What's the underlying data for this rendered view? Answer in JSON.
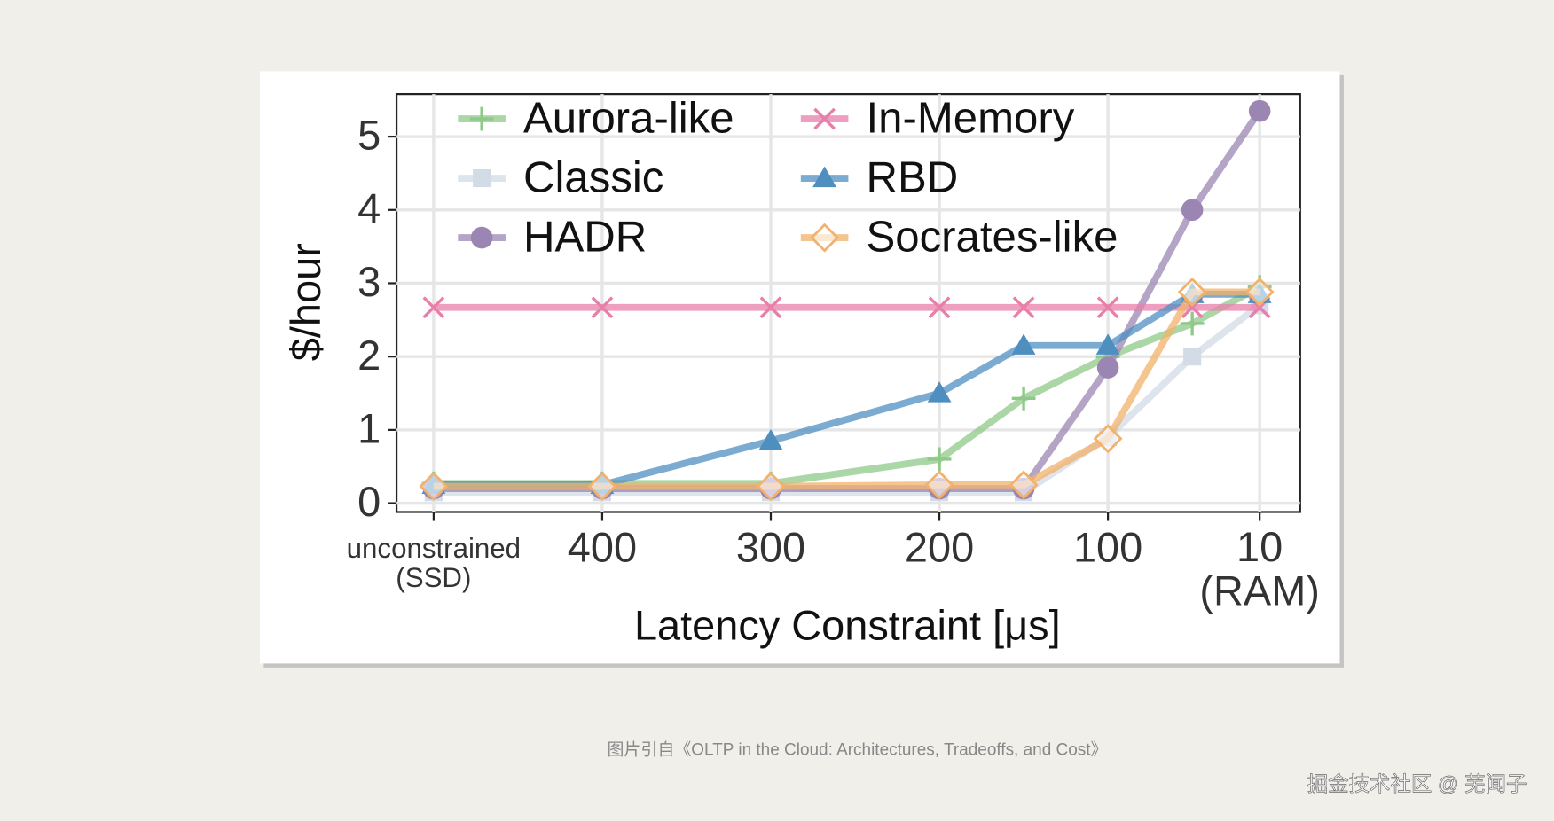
{
  "chart_data": {
    "type": "line",
    "xlabel": "Latency Constraint [μs]",
    "ylabel": "$/hour",
    "x": [
      500,
      400,
      300,
      200,
      150,
      100,
      50,
      10
    ],
    "xlim": [
      522,
      -14
    ],
    "ylim": [
      -0.12,
      5.58
    ],
    "xticks": [
      {
        "value": 500,
        "label": "unconstrained\n(SSD)"
      },
      400,
      300,
      200,
      100,
      {
        "value": 10,
        "label": "10\n(RAM)"
      }
    ],
    "yticks": [
      0,
      1,
      2,
      3,
      4,
      5
    ],
    "grid": true,
    "legend": "upper left",
    "series": [
      {
        "name": "Aurora-like",
        "color": "#8fc98a",
        "marker": "plus",
        "values": [
          0.27,
          0.27,
          0.27,
          0.6,
          1.43,
          2.0,
          2.45,
          2.95
        ]
      },
      {
        "name": "Classic",
        "color": "#d3dbe6",
        "marker": "square",
        "values": [
          0.15,
          0.15,
          0.15,
          0.15,
          0.15,
          0.9,
          2.0,
          2.7
        ]
      },
      {
        "name": "HADR",
        "color": "#9b86b3",
        "marker": "circle",
        "values": [
          0.2,
          0.2,
          0.2,
          0.2,
          0.2,
          1.85,
          4.0,
          5.35
        ]
      },
      {
        "name": "In-Memory",
        "color": "#e87fab",
        "marker": "x",
        "values": [
          2.67,
          2.67,
          2.67,
          2.67,
          2.67,
          2.67,
          2.67,
          2.67
        ]
      },
      {
        "name": "RBD",
        "color": "#4f8fc0",
        "marker": "triangle",
        "values": [
          0.25,
          0.25,
          0.85,
          1.5,
          2.15,
          2.15,
          2.85,
          2.85
        ]
      },
      {
        "name": "Socrates-like",
        "color": "#f2b26b",
        "marker": "diamond",
        "values": [
          0.23,
          0.23,
          0.23,
          0.25,
          0.25,
          0.88,
          2.88,
          2.88
        ]
      }
    ]
  },
  "caption": "图片引自《OLTP in the Cloud: Architectures, Tradeoffs, and Cost》",
  "watermark": "掘金技术社区 @ 芜闻子"
}
